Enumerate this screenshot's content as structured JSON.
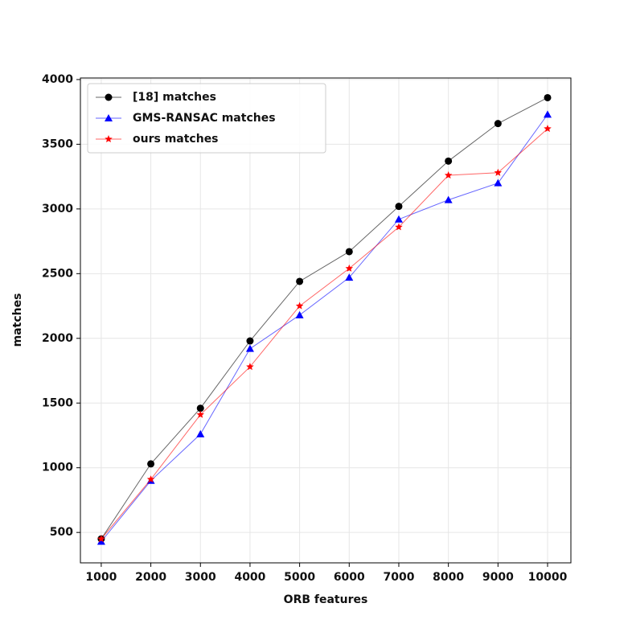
{
  "chart_data": {
    "type": "line",
    "x_label": "ORB features",
    "y_label": "matches",
    "x": [
      1000,
      2000,
      3000,
      4000,
      5000,
      6000,
      7000,
      8000,
      9000,
      10000
    ],
    "series": [
      {
        "name": "[18] matches",
        "color": "#000000",
        "marker": "circle",
        "values": [
          450,
          1030,
          1460,
          1980,
          2440,
          2670,
          3020,
          3370,
          3660,
          3860
        ]
      },
      {
        "name": "GMS-RANSAC matches",
        "color": "#0000ff",
        "marker": "triangle",
        "values": [
          430,
          900,
          1260,
          1920,
          2180,
          2470,
          2920,
          3070,
          3200,
          3730
        ]
      },
      {
        "name": "ours matches",
        "color": "#ff0000",
        "marker": "star",
        "values": [
          450,
          910,
          1410,
          1780,
          2250,
          2540,
          2860,
          3260,
          3280,
          3620
        ]
      }
    ],
    "xlim": [
      580,
      10470
    ],
    "ylim": [
      265,
      4012
    ],
    "xticks": [
      1000,
      2000,
      3000,
      4000,
      5000,
      6000,
      7000,
      8000,
      9000,
      10000
    ],
    "yticks": [
      500,
      1000,
      1500,
      2000,
      2500,
      3000,
      3500,
      4000
    ],
    "grid": true,
    "legend": "upper left"
  }
}
